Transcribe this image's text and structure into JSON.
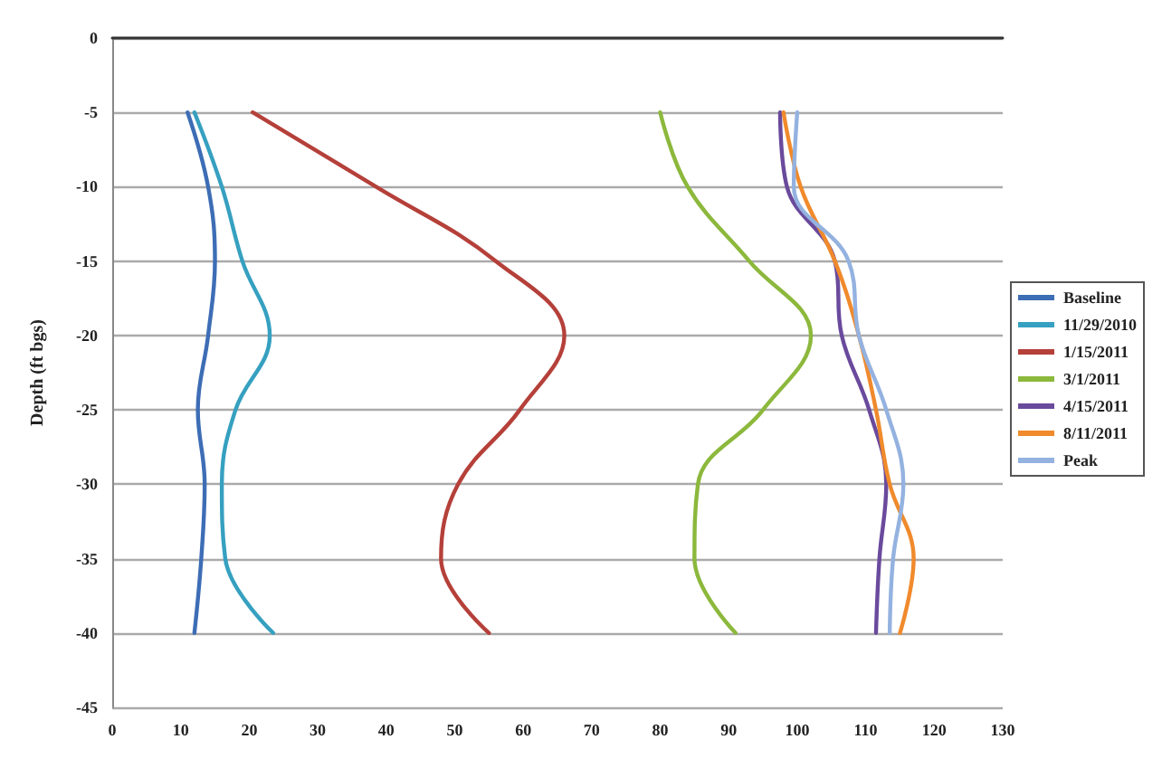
{
  "chart_data": {
    "type": "line",
    "ylabel": "Depth (ft bgs)",
    "xlim": [
      0,
      130
    ],
    "xticks": [
      0,
      10,
      20,
      30,
      40,
      50,
      60,
      70,
      80,
      90,
      100,
      110,
      120,
      130
    ],
    "ylim": [
      -45,
      0
    ],
    "yticks": [
      -45,
      -40,
      -35,
      -30,
      -25,
      -20,
      -15,
      -10,
      -5,
      0
    ],
    "grid": "y",
    "legend": "right",
    "marker": "none",
    "line_style": "solid",
    "series": [
      {
        "name": "Baseline",
        "color": "#3d6db5",
        "x": [
          11,
          14,
          15,
          14,
          12.5,
          13.5,
          13,
          12
        ],
        "values": [
          -5,
          -10,
          -15,
          -20,
          -25,
          -30,
          -35,
          -40
        ]
      },
      {
        "name": "11/29/2010",
        "color": "#36a0c0",
        "x": [
          12,
          16,
          19,
          23,
          18,
          16,
          16.5,
          23.5
        ],
        "values": [
          -5,
          -10,
          -15,
          -20,
          -25,
          -30,
          -35,
          -40
        ]
      },
      {
        "name": "1/15/2011",
        "color": "#b5403a",
        "x": [
          20.5,
          38.5,
          56,
          66,
          59.5,
          50.5,
          48,
          55
        ],
        "values": [
          -5,
          -10,
          -15,
          -20,
          -25,
          -30,
          -35,
          -40
        ]
      },
      {
        "name": "3/1/2011",
        "color": "#8cb83c",
        "x": [
          80,
          84,
          93,
          102,
          95,
          85.5,
          85,
          91
        ],
        "values": [
          -5,
          -10,
          -15,
          -20,
          -25,
          -30,
          -35,
          -40
        ]
      },
      {
        "name": "4/15/2011",
        "color": "#6a4a9c",
        "x": [
          97.5,
          98.5,
          105.5,
          106.5,
          110.5,
          113,
          112,
          111.5
        ],
        "values": [
          -5,
          -10,
          -15,
          -20,
          -25,
          -30,
          -35,
          -40
        ]
      },
      {
        "name": "8/11/2011",
        "color": "#f08a2c",
        "x": [
          98,
          100.5,
          105.5,
          109,
          111.5,
          113.5,
          117,
          115
        ],
        "values": [
          -5,
          -10,
          -15,
          -20,
          -25,
          -30,
          -35,
          -40
        ]
      },
      {
        "name": "Peak",
        "color": "#94b2e0",
        "x": [
          100,
          99.5,
          107.5,
          109,
          113,
          115.5,
          114,
          113.5
        ],
        "values": [
          -5,
          -10,
          -15,
          -20,
          -25,
          -30,
          -35,
          -40
        ]
      }
    ]
  }
}
